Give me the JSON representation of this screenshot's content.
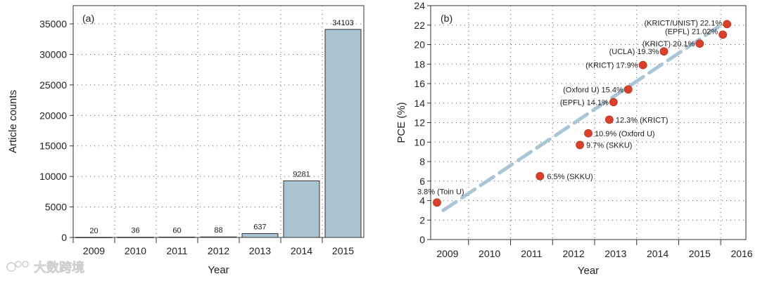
{
  "colors": {
    "bar_fill": "#a9c3d1",
    "bar_stroke": "#333333",
    "point_fill": "#d9412b",
    "trend": "#a9c5d6"
  },
  "watermark": {
    "text": "大数跨境",
    "icon": "logo-icon"
  },
  "chart_data": [
    {
      "type": "bar",
      "panel_label": "(a)",
      "categories": [
        "2009",
        "2010",
        "2011",
        "2012",
        "2013",
        "2014",
        "2015"
      ],
      "values": [
        20,
        36,
        60,
        88,
        637,
        9281,
        34103
      ],
      "value_labels": [
        "20",
        "36",
        "60",
        "88",
        "637",
        "9281",
        "34103"
      ],
      "xlabel": "Year",
      "ylabel": "Article counts",
      "ylim": [
        0,
        38000
      ],
      "yticks": [
        0,
        5000,
        10000,
        15000,
        20000,
        25000,
        30000,
        35000
      ],
      "grid": true
    },
    {
      "type": "scatter",
      "panel_label": "(b)",
      "xlabel": "Year",
      "ylabel": "PCE (%)",
      "xlim": [
        2008.6,
        2016.1
      ],
      "ylim": [
        0,
        24
      ],
      "xticks": [
        "2009",
        "2010",
        "2011",
        "2012",
        "2013",
        "2014",
        "2015",
        "2016"
      ],
      "yticks": [
        0,
        2,
        4,
        6,
        8,
        10,
        12,
        14,
        16,
        18,
        20,
        22,
        24
      ],
      "grid": true,
      "trend_line": {
        "from": [
          2008.9,
          3.0
        ],
        "to": [
          2015.5,
          22.0
        ]
      },
      "points": [
        {
          "x": 2008.75,
          "y": 3.8,
          "label": "3.8% (Toin U)"
        },
        {
          "x": 2011.2,
          "y": 6.5,
          "label": "6.5% (SKKU)"
        },
        {
          "x": 2012.15,
          "y": 9.7,
          "label": "9.7% (SKKU)"
        },
        {
          "x": 2012.35,
          "y": 10.9,
          "label": "10.9% (Oxford U)"
        },
        {
          "x": 2012.85,
          "y": 12.3,
          "label": "12.3% (KRICT)"
        },
        {
          "x": 2012.95,
          "y": 14.1,
          "label": "(EPFL) 14.1%"
        },
        {
          "x": 2013.3,
          "y": 15.4,
          "label": "(Oxford U) 15.4%"
        },
        {
          "x": 2013.65,
          "y": 17.9,
          "label": "(KRICT) 17.9%"
        },
        {
          "x": 2014.15,
          "y": 19.3,
          "label": "(UCLA) 19.3%"
        },
        {
          "x": 2015.0,
          "y": 20.1,
          "label": "(KRICT) 20.1%"
        },
        {
          "x": 2015.55,
          "y": 21.02,
          "label": "(EPFL) 21.02%"
        },
        {
          "x": 2015.65,
          "y": 22.1,
          "label": "(KRICT/UNIST) 22.1%"
        }
      ]
    }
  ]
}
